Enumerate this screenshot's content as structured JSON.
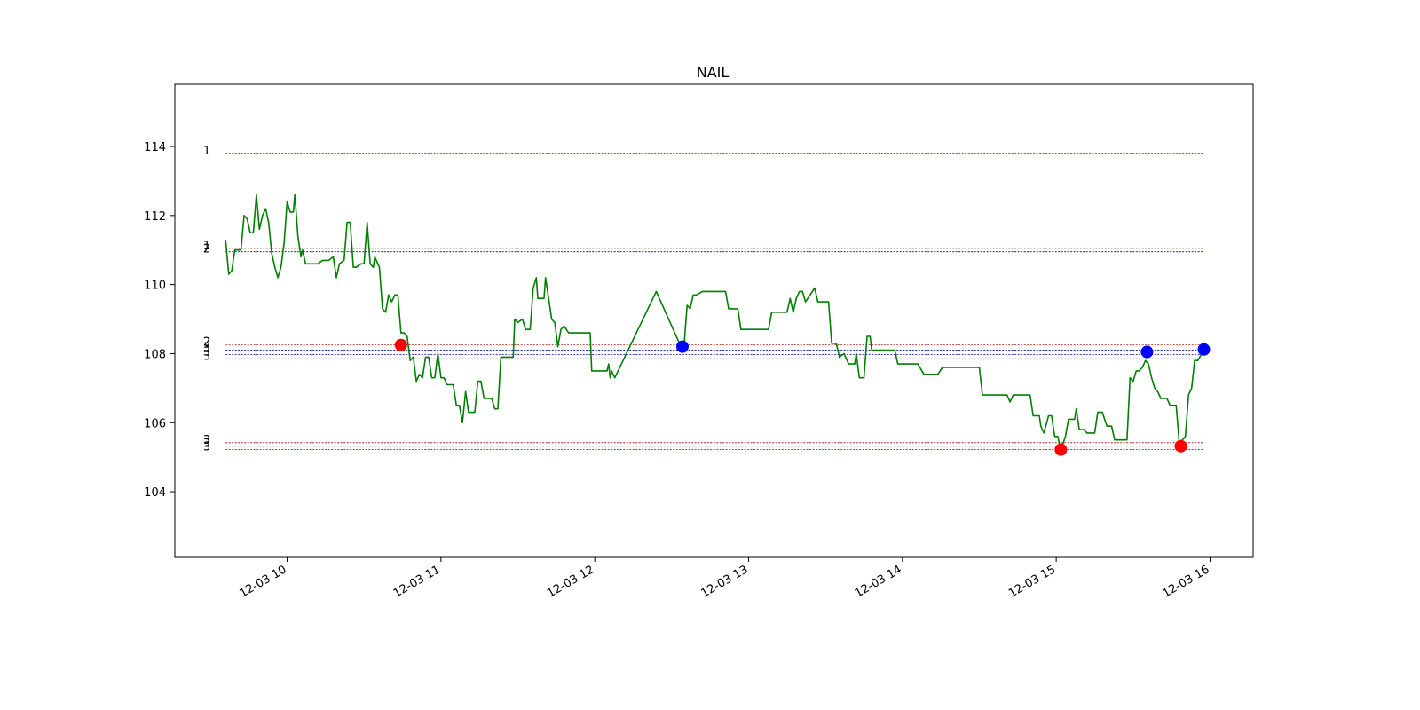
{
  "chart_data": {
    "type": "line",
    "title": "NAIL",
    "xlabel": "",
    "ylabel": "",
    "x_ticks": [
      {
        "t": 10.0,
        "label": "12-03 10"
      },
      {
        "t": 11.0,
        "label": "12-03 11"
      },
      {
        "t": 12.0,
        "label": "12-03 12"
      },
      {
        "t": 13.0,
        "label": "12-03 13"
      },
      {
        "t": 14.0,
        "label": "12-03 14"
      },
      {
        "t": 15.0,
        "label": "12-03 15"
      },
      {
        "t": 16.0,
        "label": "12-03 16"
      }
    ],
    "y_ticks": [
      104,
      106,
      108,
      110,
      112,
      114
    ],
    "xlim": [
      9.27,
      16.28
    ],
    "ylim": [
      102.1,
      115.8
    ],
    "grid": false,
    "series": [
      {
        "color": "#007f00",
        "points": [
          [
            9.6,
            111.3
          ],
          [
            9.62,
            110.3
          ],
          [
            9.64,
            110.4
          ],
          [
            9.66,
            111.0
          ],
          [
            9.68,
            111.0
          ],
          [
            9.7,
            111.0
          ],
          [
            9.72,
            112.0
          ],
          [
            9.74,
            111.9
          ],
          [
            9.76,
            111.5
          ],
          [
            9.78,
            111.5
          ],
          [
            9.8,
            112.6
          ],
          [
            9.82,
            111.6
          ],
          [
            9.84,
            112.0
          ],
          [
            9.86,
            112.2
          ],
          [
            9.88,
            111.8
          ],
          [
            9.9,
            110.9
          ],
          [
            9.92,
            110.5
          ],
          [
            9.94,
            110.2
          ],
          [
            9.96,
            110.5
          ],
          [
            9.98,
            111.2
          ],
          [
            10.0,
            112.4
          ],
          [
            10.02,
            112.1
          ],
          [
            10.04,
            112.1
          ],
          [
            10.05,
            112.6
          ],
          [
            10.07,
            111.4
          ],
          [
            10.09,
            110.8
          ],
          [
            10.1,
            111.0
          ],
          [
            10.12,
            110.6
          ],
          [
            10.15,
            110.6
          ],
          [
            10.2,
            110.6
          ],
          [
            10.23,
            110.7
          ],
          [
            10.27,
            110.7
          ],
          [
            10.3,
            110.8
          ],
          [
            10.32,
            110.2
          ],
          [
            10.34,
            110.6
          ],
          [
            10.37,
            110.7
          ],
          [
            10.39,
            111.8
          ],
          [
            10.41,
            111.8
          ],
          [
            10.43,
            110.5
          ],
          [
            10.45,
            110.5
          ],
          [
            10.48,
            110.6
          ],
          [
            10.5,
            110.6
          ],
          [
            10.52,
            111.8
          ],
          [
            10.54,
            110.6
          ],
          [
            10.56,
            110.5
          ],
          [
            10.57,
            110.8
          ],
          [
            10.6,
            110.5
          ],
          [
            10.62,
            109.3
          ],
          [
            10.64,
            109.2
          ],
          [
            10.66,
            109.7
          ],
          [
            10.68,
            109.5
          ],
          [
            10.7,
            109.7
          ],
          [
            10.72,
            109.7
          ],
          [
            10.74,
            108.6
          ],
          [
            10.76,
            108.6
          ],
          [
            10.78,
            108.5
          ],
          [
            10.8,
            107.8
          ],
          [
            10.82,
            107.9
          ],
          [
            10.84,
            107.2
          ],
          [
            10.86,
            107.4
          ],
          [
            10.88,
            107.3
          ],
          [
            10.9,
            107.9
          ],
          [
            10.92,
            107.9
          ],
          [
            10.94,
            107.3
          ],
          [
            10.96,
            107.3
          ],
          [
            10.98,
            108.0
          ],
          [
            11.0,
            107.3
          ],
          [
            11.02,
            107.3
          ],
          [
            11.04,
            107.1
          ],
          [
            11.08,
            107.1
          ],
          [
            11.1,
            106.5
          ],
          [
            11.12,
            106.5
          ],
          [
            11.14,
            106.0
          ],
          [
            11.16,
            106.9
          ],
          [
            11.18,
            106.3
          ],
          [
            11.22,
            106.3
          ],
          [
            11.24,
            107.2
          ],
          [
            11.26,
            107.2
          ],
          [
            11.28,
            106.7
          ],
          [
            11.33,
            106.7
          ],
          [
            11.35,
            106.4
          ],
          [
            11.37,
            106.4
          ],
          [
            11.39,
            107.9
          ],
          [
            11.41,
            107.9
          ],
          [
            11.45,
            107.9
          ],
          [
            11.47,
            107.9
          ],
          [
            11.48,
            109.0
          ],
          [
            11.5,
            108.9
          ],
          [
            11.53,
            109.0
          ],
          [
            11.55,
            108.7
          ],
          [
            11.58,
            108.7
          ],
          [
            11.6,
            109.9
          ],
          [
            11.62,
            110.2
          ],
          [
            11.63,
            109.6
          ],
          [
            11.67,
            109.6
          ],
          [
            11.68,
            110.2
          ],
          [
            11.7,
            109.6
          ],
          [
            11.72,
            109.0
          ],
          [
            11.74,
            108.9
          ],
          [
            11.76,
            108.2
          ],
          [
            11.78,
            108.7
          ],
          [
            11.8,
            108.8
          ],
          [
            11.83,
            108.6
          ],
          [
            11.87,
            108.6
          ],
          [
            11.9,
            108.6
          ],
          [
            11.97,
            108.6
          ],
          [
            11.98,
            107.5
          ],
          [
            12.05,
            107.5
          ],
          [
            12.08,
            107.5
          ],
          [
            12.09,
            107.7
          ],
          [
            12.1,
            107.3
          ],
          [
            12.11,
            107.5
          ],
          [
            12.13,
            107.3
          ],
          [
            12.4,
            109.8
          ],
          [
            12.55,
            108.3
          ],
          [
            12.58,
            108.2
          ],
          [
            12.6,
            109.4
          ],
          [
            12.62,
            109.3
          ],
          [
            12.64,
            109.7
          ],
          [
            12.66,
            109.7
          ],
          [
            12.7,
            109.8
          ],
          [
            12.85,
            109.8
          ],
          [
            12.87,
            109.3
          ],
          [
            12.93,
            109.3
          ],
          [
            12.95,
            108.7
          ],
          [
            13.13,
            108.7
          ],
          [
            13.15,
            109.2
          ],
          [
            13.25,
            109.2
          ],
          [
            13.27,
            109.6
          ],
          [
            13.29,
            109.2
          ],
          [
            13.31,
            109.6
          ],
          [
            13.33,
            109.8
          ],
          [
            13.35,
            109.8
          ],
          [
            13.37,
            109.5
          ],
          [
            13.4,
            109.7
          ],
          [
            13.43,
            109.9
          ],
          [
            13.45,
            109.5
          ],
          [
            13.52,
            109.5
          ],
          [
            13.54,
            108.3
          ],
          [
            13.57,
            108.3
          ],
          [
            13.59,
            107.9
          ],
          [
            13.62,
            108.0
          ],
          [
            13.65,
            107.7
          ],
          [
            13.69,
            107.7
          ],
          [
            13.7,
            108.0
          ],
          [
            13.72,
            107.3
          ],
          [
            13.75,
            107.3
          ],
          [
            13.77,
            108.5
          ],
          [
            13.79,
            108.5
          ],
          [
            13.8,
            108.1
          ],
          [
            13.95,
            108.1
          ],
          [
            13.97,
            107.7
          ],
          [
            14.1,
            107.7
          ],
          [
            14.14,
            107.4
          ],
          [
            14.2,
            107.4
          ],
          [
            14.23,
            107.4
          ],
          [
            14.26,
            107.6
          ],
          [
            14.5,
            107.6
          ],
          [
            14.52,
            106.8
          ],
          [
            14.68,
            106.8
          ],
          [
            14.7,
            106.6
          ],
          [
            14.72,
            106.8
          ],
          [
            14.83,
            106.8
          ],
          [
            14.85,
            106.2
          ],
          [
            14.89,
            106.2
          ],
          [
            14.9,
            105.9
          ],
          [
            14.92,
            105.7
          ],
          [
            14.95,
            106.2
          ],
          [
            14.97,
            106.2
          ],
          [
            14.99,
            105.6
          ],
          [
            15.01,
            105.6
          ],
          [
            15.03,
            105.2
          ],
          [
            15.06,
            105.6
          ],
          [
            15.08,
            106.1
          ],
          [
            15.12,
            106.1
          ],
          [
            15.13,
            106.4
          ],
          [
            15.15,
            105.8
          ],
          [
            15.18,
            105.8
          ],
          [
            15.2,
            105.7
          ],
          [
            15.25,
            105.7
          ],
          [
            15.27,
            106.3
          ],
          [
            15.3,
            106.3
          ],
          [
            15.33,
            105.9
          ],
          [
            15.36,
            105.9
          ],
          [
            15.38,
            105.5
          ],
          [
            15.46,
            105.5
          ],
          [
            15.48,
            107.3
          ],
          [
            15.5,
            107.2
          ],
          [
            15.52,
            107.5
          ],
          [
            15.54,
            107.5
          ],
          [
            15.56,
            107.6
          ],
          [
            15.58,
            107.8
          ],
          [
            15.6,
            107.7
          ],
          [
            15.62,
            107.3
          ],
          [
            15.64,
            107.0
          ],
          [
            15.66,
            106.9
          ],
          [
            15.68,
            106.7
          ],
          [
            15.72,
            106.7
          ],
          [
            15.74,
            106.5
          ],
          [
            15.78,
            106.5
          ],
          [
            15.8,
            105.4
          ],
          [
            15.82,
            105.5
          ],
          [
            15.84,
            105.6
          ],
          [
            15.86,
            106.8
          ],
          [
            15.88,
            107.0
          ],
          [
            15.9,
            107.8
          ],
          [
            15.92,
            107.8
          ],
          [
            15.96,
            108.1
          ]
        ]
      }
    ],
    "reference_lines": [
      {
        "y": 113.8,
        "color": "#00008b",
        "label": "1"
      },
      {
        "y": 111.05,
        "color": "#8b0000",
        "label": "1"
      },
      {
        "y": 110.95,
        "color": "#00008b",
        "label": "2"
      },
      {
        "y": 108.25,
        "color": "#8b0000",
        "label": "2"
      },
      {
        "y": 108.1,
        "color": "#00008b",
        "label": "3"
      },
      {
        "y": 107.97,
        "color": "#00008b",
        "label": "3"
      },
      {
        "y": 107.85,
        "color": "#00008b",
        "label": "3"
      },
      {
        "y": 105.42,
        "color": "#8b0000",
        "label": "3"
      },
      {
        "y": 105.32,
        "color": "#8b0000",
        "label": "3"
      },
      {
        "y": 105.22,
        "color": "#8b0000",
        "label": "3"
      }
    ],
    "ref_line_x_range": [
      9.6,
      15.96
    ],
    "markers": [
      {
        "x": 10.74,
        "y": 108.25,
        "color": "#ff0000"
      },
      {
        "x": 12.57,
        "y": 108.2,
        "color": "#0000ff"
      },
      {
        "x": 15.03,
        "y": 105.22,
        "color": "#ff0000"
      },
      {
        "x": 15.59,
        "y": 108.05,
        "color": "#0000ff"
      },
      {
        "x": 15.81,
        "y": 105.32,
        "color": "#ff0000"
      },
      {
        "x": 15.96,
        "y": 108.12,
        "color": "#0000ff"
      }
    ]
  }
}
